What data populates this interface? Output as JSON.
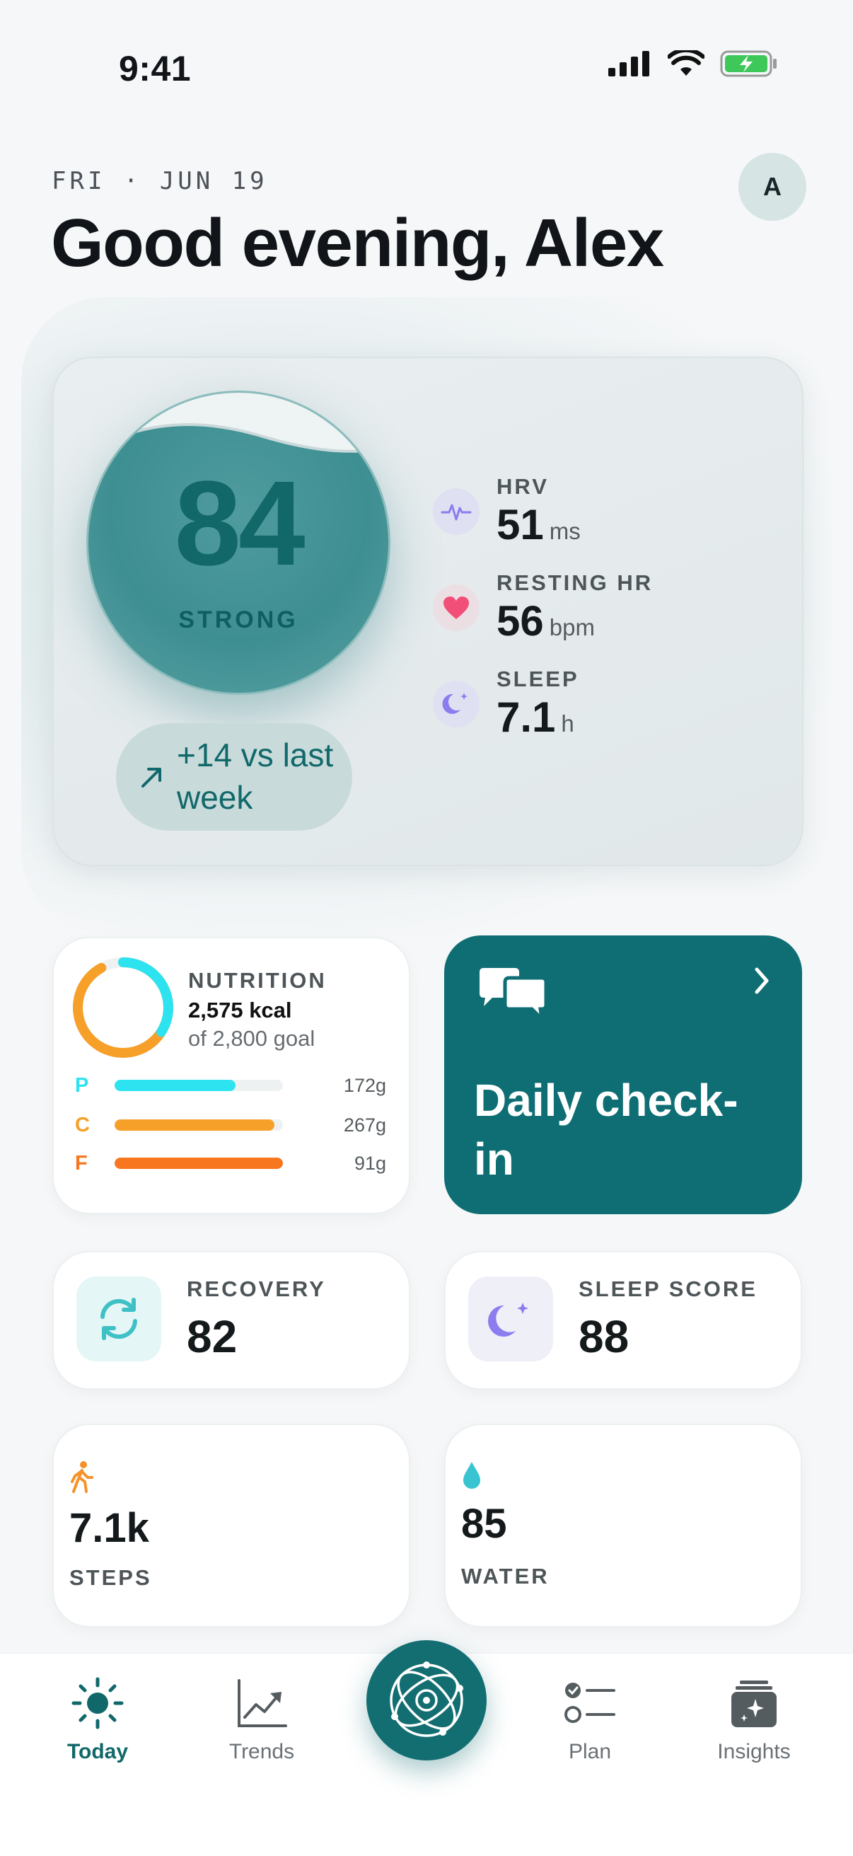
{
  "status_bar": {
    "time": "9:41"
  },
  "header": {
    "date": "FRI · JUN 19",
    "greeting": "Good evening, Alex",
    "avatar_initial": "A"
  },
  "score": {
    "value": "84",
    "label": "STRONG",
    "trend": "+14 vs last week"
  },
  "metrics": [
    {
      "label": "HRV",
      "value": "51",
      "unit": "ms",
      "icon": "heartbeat-icon"
    },
    {
      "label": "RESTING HR",
      "value": "56",
      "unit": "bpm",
      "icon": "heart-icon"
    },
    {
      "label": "SLEEP",
      "value": "7.1",
      "unit": "h",
      "icon": "moon-icon"
    }
  ],
  "nutrition": {
    "title": "NUTRITION",
    "kcal": "2,575 kcal",
    "goal": "of 2,800 goal",
    "progress": 0.92,
    "macros": [
      {
        "letter": "P",
        "amount": "172g",
        "fraction": 0.72,
        "color": "#2ee3f0"
      },
      {
        "letter": "C",
        "amount": "267g",
        "fraction": 0.95,
        "color": "#f6a02a"
      },
      {
        "letter": "F",
        "amount": "91g",
        "fraction": 1.0,
        "color": "#f7761e"
      }
    ]
  },
  "checkin": {
    "title": "Daily check-in"
  },
  "recovery": {
    "label": "RECOVERY",
    "value": "82"
  },
  "sleep_score": {
    "label": "SLEEP SCORE",
    "value": "88"
  },
  "steps": {
    "label": "STEPS",
    "value": "7.1k"
  },
  "water": {
    "label": "WATER",
    "value": "85"
  },
  "tabs": [
    {
      "label": "Today",
      "icon": "sun-icon",
      "active": true
    },
    {
      "label": "Trends",
      "icon": "chart-icon",
      "active": false
    },
    {
      "label": "Plan",
      "icon": "checklist-icon",
      "active": false
    },
    {
      "label": "Insights",
      "icon": "sparkle-icon",
      "active": false
    }
  ],
  "colors": {
    "accent": "#0f6e73",
    "score": "#3e8f92"
  }
}
